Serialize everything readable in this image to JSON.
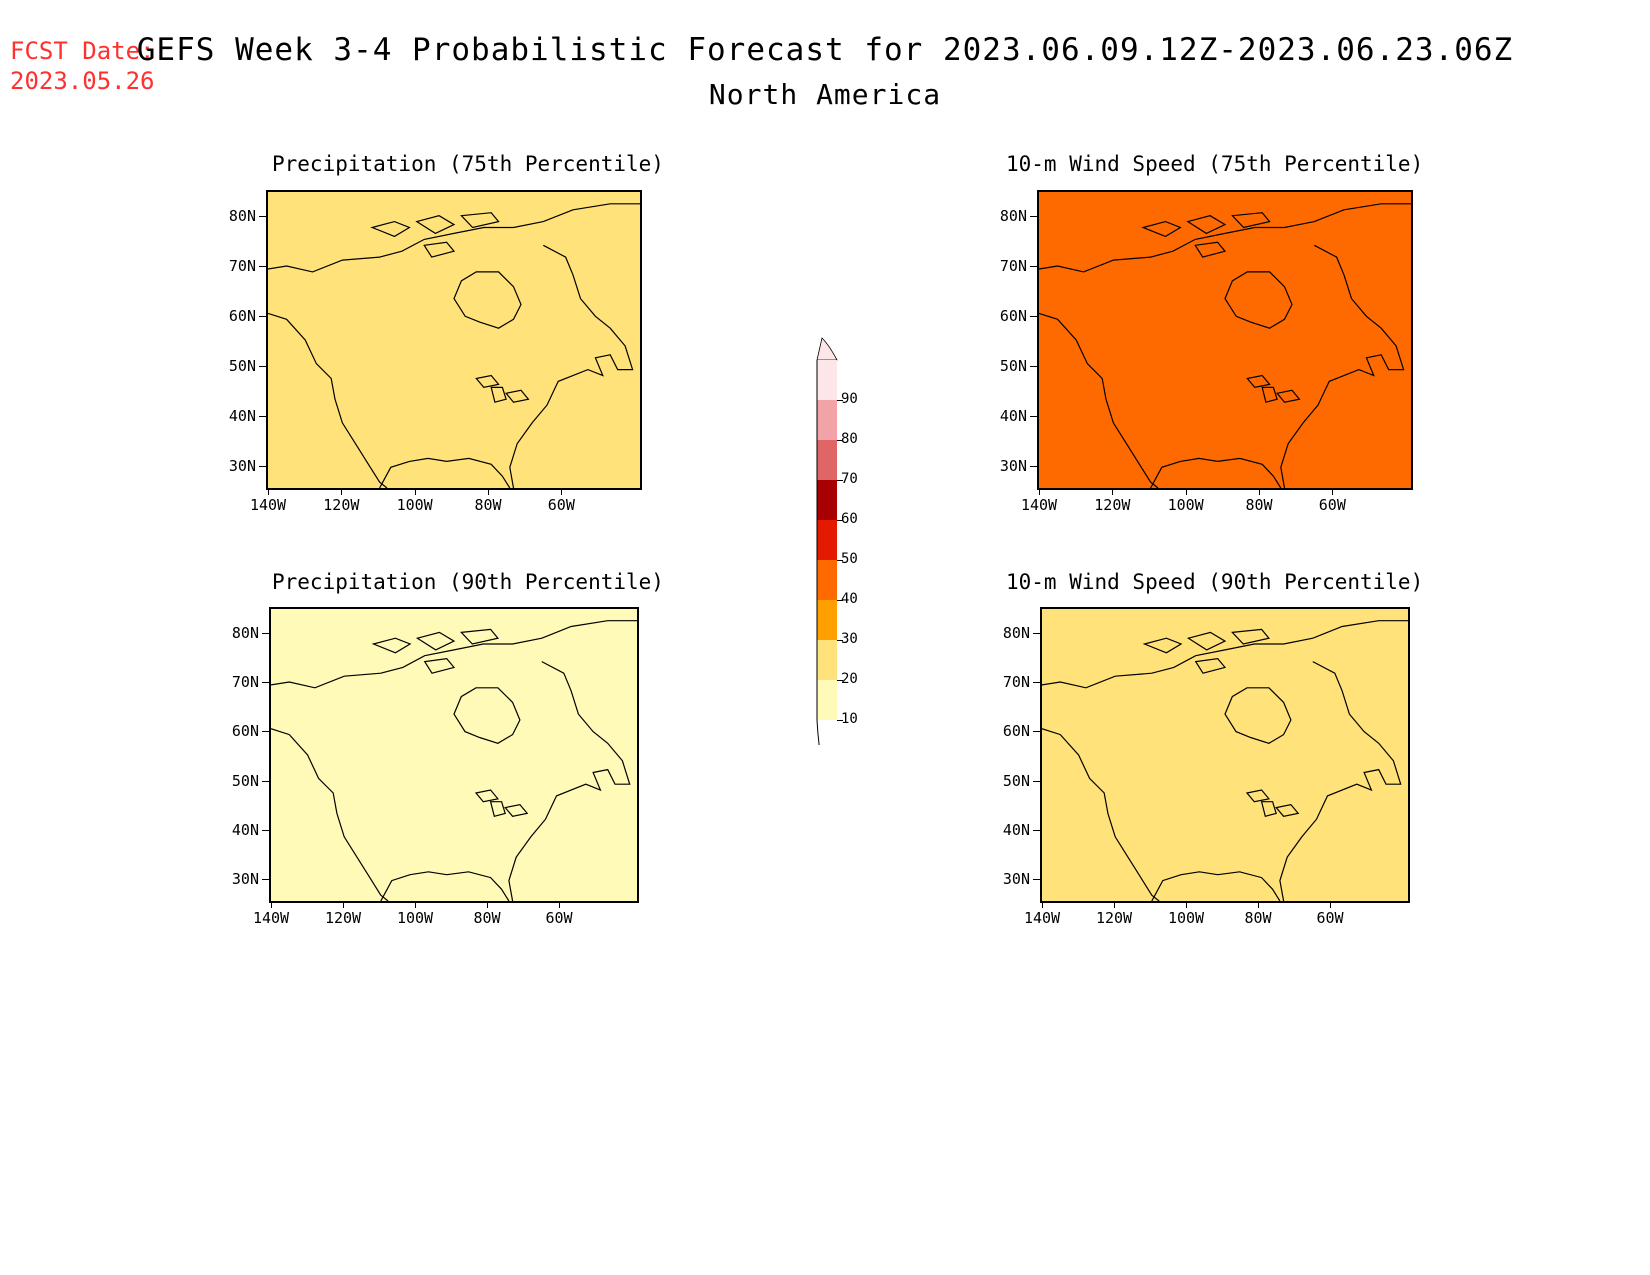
{
  "header": {
    "fcst_label": "FCST Date:",
    "fcst_date": "2023.05.26",
    "title": "GEFS Week 3-4 Probabilistic Forecast for 2023.06.09.12Z-2023.06.23.06Z",
    "subtitle": "North America"
  },
  "lat_labels": [
    "80N",
    "70N",
    "60N",
    "50N",
    "40N",
    "30N"
  ],
  "lon_labels": [
    "140W",
    "120W",
    "100W",
    "80W",
    "60W"
  ],
  "panels": [
    {
      "title": "Precipitation (75th Percentile)",
      "base_level": 20
    },
    {
      "title": "10-m Wind Speed (75th Percentile)",
      "base_level": 40
    },
    {
      "title": "Precipitation (90th Percentile)",
      "base_level": 10
    },
    {
      "title": "10-m Wind Speed (90th Percentile)",
      "base_level": 20
    }
  ],
  "colorbar": {
    "levels": [
      "90",
      "80",
      "70",
      "60",
      "50",
      "40",
      "30",
      "20",
      "10"
    ],
    "colors": [
      "#fde6e8",
      "#f2a3a8",
      "#e06666",
      "#a80000",
      "#e31a00",
      "#ff6a00",
      "#ff9f00",
      "#ffe27a",
      "#fffab8"
    ]
  },
  "colors": {
    "fcst": "#ff3030",
    "no_signal": "#ffffff"
  }
}
